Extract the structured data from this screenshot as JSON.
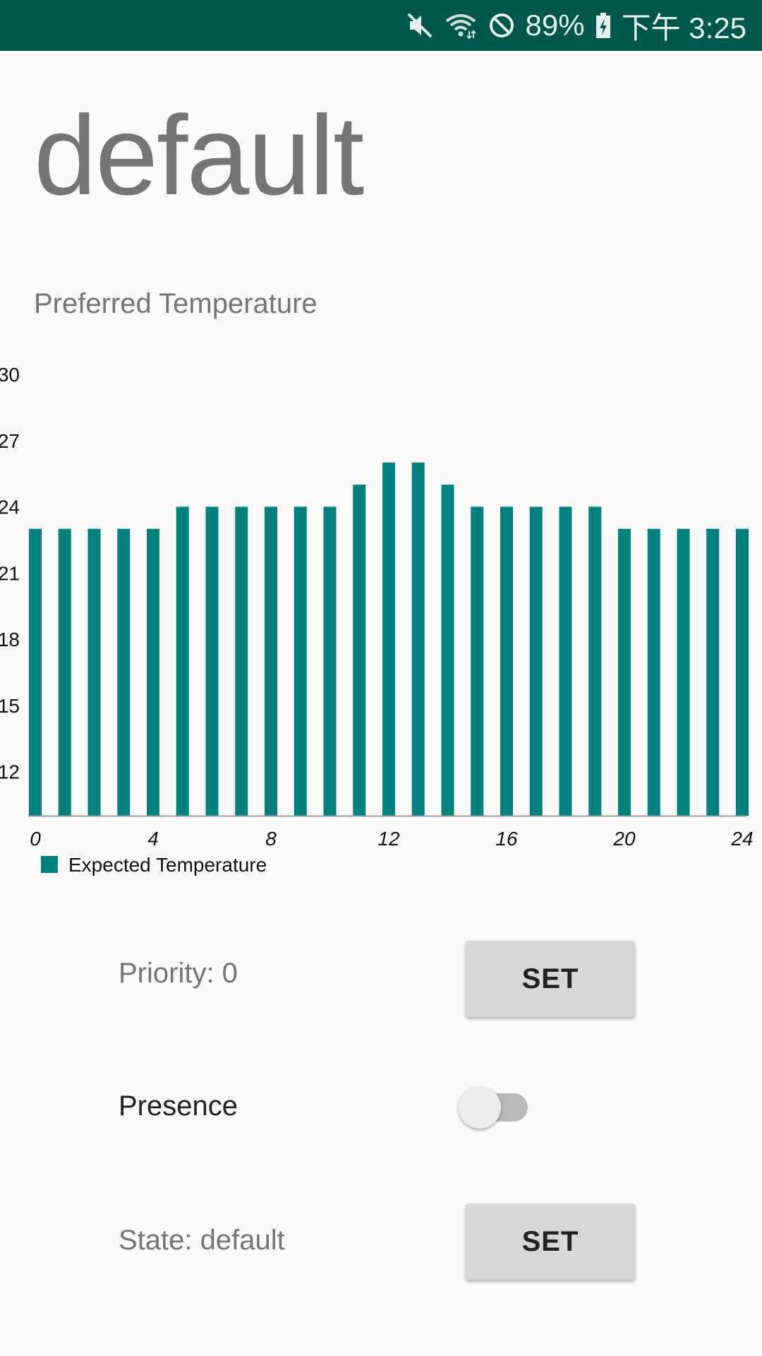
{
  "status_bar": {
    "icons": [
      "mute-icon",
      "wifi-icon",
      "do-not-disturb-icon",
      "battery-charging-icon"
    ],
    "battery": "89%",
    "time": "下午 3:25"
  },
  "header": {
    "title": "default",
    "subtitle": "Preferred Temperature"
  },
  "chart_data": {
    "type": "bar",
    "x": [
      0,
      1,
      2,
      3,
      4,
      5,
      6,
      7,
      8,
      9,
      10,
      11,
      12,
      13,
      14,
      15,
      16,
      17,
      18,
      19,
      20,
      21,
      22,
      23,
      24
    ],
    "values": [
      23,
      23,
      23,
      23,
      23,
      24,
      24,
      24,
      24,
      24,
      24,
      25,
      26,
      26,
      25,
      24,
      24,
      24,
      24,
      24,
      23,
      23,
      23,
      23,
      23
    ],
    "series_name": "Expected Temperature",
    "ylim": [
      10,
      30
    ],
    "yticks": [
      "12",
      "15",
      "18",
      "21",
      "24",
      "27",
      "30"
    ],
    "xticks": [
      "0",
      "4",
      "8",
      "12",
      "16",
      "20",
      "24"
    ],
    "bar_color": "#00827f",
    "legend_position": "bottom-left",
    "title": "",
    "xlabel": "",
    "ylabel": ""
  },
  "controls": {
    "priority_label": "Priority: 0",
    "priority_button": "SET",
    "presence_label": "Presence",
    "presence_on": false,
    "state_label": "State: default",
    "state_button": "SET"
  }
}
